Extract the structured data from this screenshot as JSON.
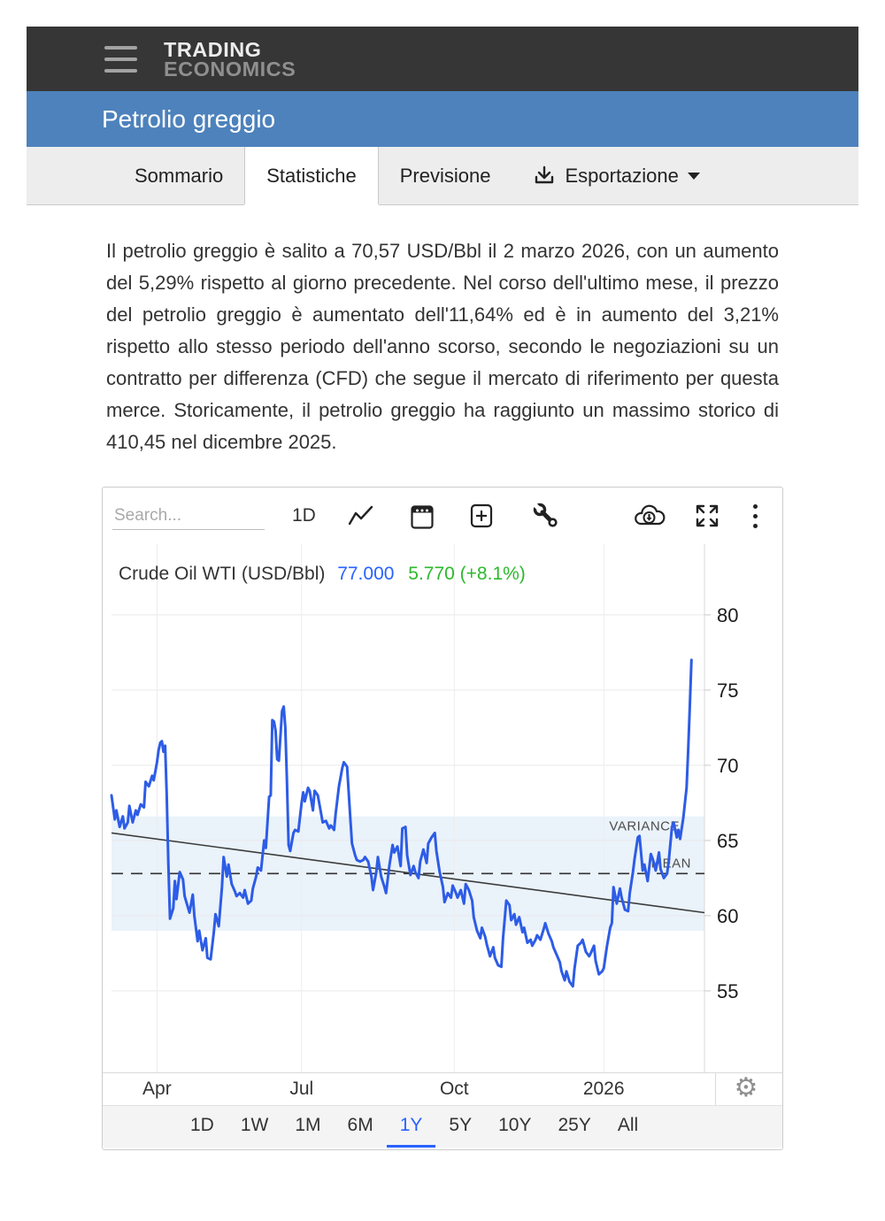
{
  "header": {
    "brand_line1": "TRADING",
    "brand_line2": "ECONOMICS"
  },
  "title_bar": {
    "title": "Petrolio greggio"
  },
  "tabs": [
    {
      "label": "Sommario",
      "active": false
    },
    {
      "label": "Statistiche",
      "active": true
    },
    {
      "label": "Previsione",
      "active": false
    },
    {
      "label": "Esportazione",
      "active": false,
      "icon": "download-icon",
      "caret": true
    }
  ],
  "article": {
    "text": "Il petrolio greggio è salito a 70,57 USD/Bbl il 2 marzo 2026, con un aumento del 5,29% rispetto al giorno precedente. Nel corso dell'ultimo mese, il prezzo del petrolio greggio è aumentato dell'11,64% ed è in aumento del 3,21% rispetto allo stesso periodo dell'anno scorso, secondo le negoziazioni su un contratto per differenza (CFD) che segue il mercato di riferimento per questa merce. Storicamente, il petrolio greggio ha raggiunto un massimo storico di 410,45 nel dicembre 2025."
  },
  "chart_toolbar": {
    "search_placeholder": "Search...",
    "interval_label": "1D",
    "icons": [
      "line-chart-icon",
      "calendar-icon",
      "add-indicator-icon",
      "tools-icon",
      "cloud-download-icon",
      "fullscreen-icon",
      "more-options-icon"
    ]
  },
  "chart_data": {
    "type": "line",
    "title": "Crude Oil WTI (USD/Bbl)",
    "last_value": "77.000",
    "change": "5.770 (+8.1%)",
    "series_name": "Crude Oil WTI",
    "series_color": "#2d5ce6",
    "x_unit": "day-of-range (1Y span)",
    "xlim": [
      0,
      365
    ],
    "ylim": [
      49.5,
      84.7
    ],
    "y_ticks": [
      80,
      75,
      70,
      65,
      60,
      55
    ],
    "x_ticks": [
      {
        "day": 28,
        "label": "Apr"
      },
      {
        "day": 117,
        "label": "Jul"
      },
      {
        "day": 211,
        "label": "Oct"
      },
      {
        "day": 303,
        "label": "2026"
      }
    ],
    "axis_side": "right",
    "grid": true,
    "overlays": {
      "mean": {
        "value": 62.8,
        "label": "MEAN",
        "style": "dashed"
      },
      "variance_band": {
        "from": 59.0,
        "to": 66.6,
        "label": "VARIANCE",
        "color": "#eaf2fa"
      },
      "trend_line": {
        "start_value": 65.5,
        "end_value": 60.2,
        "color": "#3c3c3c"
      }
    },
    "points": [
      [
        0,
        68.0
      ],
      [
        2,
        66.4
      ],
      [
        3,
        67.0
      ],
      [
        5,
        65.9
      ],
      [
        7,
        66.6
      ],
      [
        8,
        65.8
      ],
      [
        10,
        66.2
      ],
      [
        11,
        67.3
      ],
      [
        13,
        66.2
      ],
      [
        15,
        67.0
      ],
      [
        16,
        66.7
      ],
      [
        18,
        67.4
      ],
      [
        20,
        67.2
      ],
      [
        21,
        68.9
      ],
      [
        23,
        68.6
      ],
      [
        25,
        69.3
      ],
      [
        26,
        69.0
      ],
      [
        28,
        70.2
      ],
      [
        29,
        71.0
      ],
      [
        30,
        71.5
      ],
      [
        31,
        71.6
      ],
      [
        32,
        70.9
      ],
      [
        33,
        71.3
      ],
      [
        34,
        68.0
      ],
      [
        35,
        63.5
      ],
      [
        36,
        59.8
      ],
      [
        38,
        60.5
      ],
      [
        39,
        62.3
      ],
      [
        40,
        61.1
      ],
      [
        42,
        62.9
      ],
      [
        44,
        62.4
      ],
      [
        45,
        61.3
      ],
      [
        48,
        60.2
      ],
      [
        50,
        61.4
      ],
      [
        51,
        60.0
      ],
      [
        53,
        58.3
      ],
      [
        54,
        59.0
      ],
      [
        56,
        57.7
      ],
      [
        58,
        58.5
      ],
      [
        59,
        57.2
      ],
      [
        61,
        57.1
      ],
      [
        63,
        58.9
      ],
      [
        64,
        60.1
      ],
      [
        66,
        59.3
      ],
      [
        68,
        61.9
      ],
      [
        69,
        63.9
      ],
      [
        71,
        62.6
      ],
      [
        72,
        63.4
      ],
      [
        74,
        62.1
      ],
      [
        76,
        61.6
      ],
      [
        77,
        61.3
      ],
      [
        79,
        61.5
      ],
      [
        81,
        61.2
      ],
      [
        82,
        61.7
      ],
      [
        84,
        60.8
      ],
      [
        86,
        61.0
      ],
      [
        87,
        61.8
      ],
      [
        89,
        62.6
      ],
      [
        90,
        63.2
      ],
      [
        92,
        63.0
      ],
      [
        94,
        65.0
      ],
      [
        95,
        64.5
      ],
      [
        97,
        67.9
      ],
      [
        98,
        68.0
      ],
      [
        99,
        73.0
      ],
      [
        100,
        72.9
      ],
      [
        101,
        72.3
      ],
      [
        102,
        70.4
      ],
      [
        103,
        70.3
      ],
      [
        105,
        73.6
      ],
      [
        106,
        73.9
      ],
      [
        107,
        72.5
      ],
      [
        108,
        69.0
      ],
      [
        109,
        64.7
      ],
      [
        110,
        64.3
      ],
      [
        112,
        65.5
      ],
      [
        113,
        65.7
      ],
      [
        115,
        65.6
      ],
      [
        117,
        67.5
      ],
      [
        118,
        68.2
      ],
      [
        119,
        67.6
      ],
      [
        121,
        68.5
      ],
      [
        122,
        68.3
      ],
      [
        124,
        67.0
      ],
      [
        125,
        68.3
      ],
      [
        127,
        68.0
      ],
      [
        129,
        66.8
      ],
      [
        130,
        66.2
      ],
      [
        132,
        66.3
      ],
      [
        134,
        65.8
      ],
      [
        135,
        66.0
      ],
      [
        137,
        65.7
      ],
      [
        138,
        66.8
      ],
      [
        140,
        68.6
      ],
      [
        142,
        69.8
      ],
      [
        143,
        70.2
      ],
      [
        145,
        69.9
      ],
      [
        147,
        66.5
      ],
      [
        148,
        64.8
      ],
      [
        150,
        64.0
      ],
      [
        151,
        63.7
      ],
      [
        153,
        63.6
      ],
      [
        155,
        63.7
      ],
      [
        156,
        63.9
      ],
      [
        158,
        63.6
      ],
      [
        160,
        62.6
      ],
      [
        161,
        61.7
      ],
      [
        163,
        62.9
      ],
      [
        164,
        63.9
      ],
      [
        166,
        62.6
      ],
      [
        168,
        61.9
      ],
      [
        169,
        61.5
      ],
      [
        171,
        63.3
      ],
      [
        173,
        64.7
      ],
      [
        174,
        64.2
      ],
      [
        176,
        64.6
      ],
      [
        178,
        63.3
      ],
      [
        179,
        65.8
      ],
      [
        181,
        65.9
      ],
      [
        182,
        64.0
      ],
      [
        184,
        62.7
      ],
      [
        186,
        63.3
      ],
      [
        187,
        62.9
      ],
      [
        189,
        62.5
      ],
      [
        190,
        63.6
      ],
      [
        192,
        64.4
      ],
      [
        194,
        63.5
      ],
      [
        195,
        64.8
      ],
      [
        197,
        65.2
      ],
      [
        199,
        65.5
      ],
      [
        200,
        64.3
      ],
      [
        202,
        62.9
      ],
      [
        204,
        61.9
      ],
      [
        205,
        60.9
      ],
      [
        207,
        61.5
      ],
      [
        209,
        61.2
      ],
      [
        210,
        62.0
      ],
      [
        212,
        61.5
      ],
      [
        213,
        61.2
      ],
      [
        215,
        61.7
      ],
      [
        217,
        60.8
      ],
      [
        218,
        62.1
      ],
      [
        220,
        61.7
      ],
      [
        222,
        61.0
      ],
      [
        223,
        59.9
      ],
      [
        225,
        59.0
      ],
      [
        227,
        58.5
      ],
      [
        228,
        59.2
      ],
      [
        230,
        58.6
      ],
      [
        231,
        58.1
      ],
      [
        233,
        57.3
      ],
      [
        235,
        57.9
      ],
      [
        236,
        57.2
      ],
      [
        238,
        56.7
      ],
      [
        240,
        56.6
      ],
      [
        241,
        58.5
      ],
      [
        243,
        61.0
      ],
      [
        245,
        60.7
      ],
      [
        246,
        59.7
      ],
      [
        248,
        60.1
      ],
      [
        249,
        59.4
      ],
      [
        251,
        59.9
      ],
      [
        253,
        58.9
      ],
      [
        254,
        59.2
      ],
      [
        256,
        58.2
      ],
      [
        258,
        58.4
      ],
      [
        259,
        58.0
      ],
      [
        261,
        58.4
      ],
      [
        262,
        58.7
      ],
      [
        264,
        58.4
      ],
      [
        266,
        59.1
      ],
      [
        267,
        59.5
      ],
      [
        269,
        58.8
      ],
      [
        271,
        58.3
      ],
      [
        272,
        57.9
      ],
      [
        274,
        57.4
      ],
      [
        276,
        56.9
      ],
      [
        277,
        56.3
      ],
      [
        279,
        55.7
      ],
      [
        280,
        56.3
      ],
      [
        282,
        55.6
      ],
      [
        284,
        55.3
      ],
      [
        285,
        56.5
      ],
      [
        287,
        58.0
      ],
      [
        289,
        58.2
      ],
      [
        290,
        58.4
      ],
      [
        292,
        57.6
      ],
      [
        294,
        57.3
      ],
      [
        295,
        57.5
      ],
      [
        297,
        58.0
      ],
      [
        298,
        57.0
      ],
      [
        300,
        56.1
      ],
      [
        302,
        56.3
      ],
      [
        303,
        56.5
      ],
      [
        305,
        58.0
      ],
      [
        307,
        59.2
      ],
      [
        308,
        59.5
      ],
      [
        309,
        61.9
      ],
      [
        311,
        60.8
      ],
      [
        313,
        61.8
      ],
      [
        314,
        61.2
      ],
      [
        316,
        60.4
      ],
      [
        318,
        60.3
      ],
      [
        319,
        61.5
      ],
      [
        321,
        62.9
      ],
      [
        322,
        63.8
      ],
      [
        324,
        65.2
      ],
      [
        325,
        65.3
      ],
      [
        327,
        63.0
      ],
      [
        328,
        63.4
      ],
      [
        330,
        62.3
      ],
      [
        332,
        64.1
      ],
      [
        333,
        63.8
      ],
      [
        335,
        63.0
      ],
      [
        337,
        64.2
      ],
      [
        338,
        63.1
      ],
      [
        340,
        62.5
      ],
      [
        342,
        62.8
      ],
      [
        343,
        63.6
      ],
      [
        345,
        65.9
      ],
      [
        346,
        66.2
      ],
      [
        348,
        65.2
      ],
      [
        349,
        65.7
      ],
      [
        350,
        65.1
      ],
      [
        352,
        66.5
      ],
      [
        354,
        68.5
      ],
      [
        355,
        71.0
      ],
      [
        356,
        74.0
      ],
      [
        357,
        77.0
      ]
    ]
  },
  "periods": {
    "items": [
      "1D",
      "1W",
      "1M",
      "6M",
      "1Y",
      "5Y",
      "10Y",
      "25Y",
      "All"
    ],
    "active": "1Y"
  },
  "colors": {
    "header_dark": "#363636",
    "titlebar_blue": "#4d82bc",
    "value_blue": "#2962ff",
    "change_green": "#2db92d",
    "series_blue": "#2d5ce6",
    "band_fill": "#eaf2fa",
    "grid": "#e9e9e9"
  }
}
